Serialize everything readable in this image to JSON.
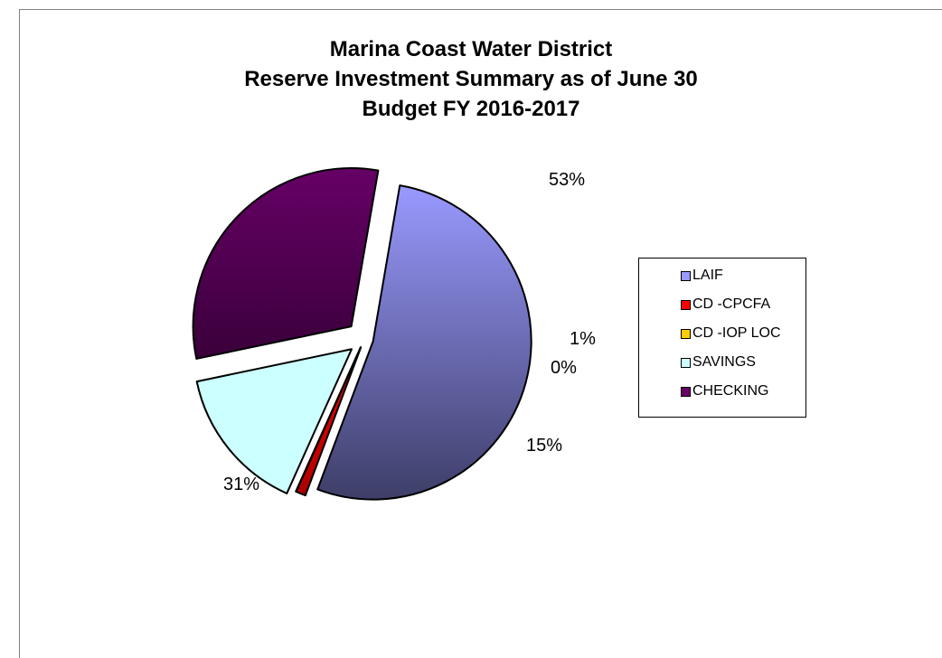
{
  "chart_data": {
    "type": "pie",
    "title_lines": [
      "Marina Coast Water District",
      "Reserve Investment Summary as of June 30",
      "Budget FY 2016-2017"
    ],
    "categories": [
      "LAIF",
      "CD -CPCFA",
      "CD -IOP LOC",
      "SAVINGS",
      "CHECKING"
    ],
    "values": [
      53,
      1,
      0,
      15,
      31
    ],
    "labels": [
      "53%",
      "1%",
      "0%",
      "15%",
      "31%"
    ],
    "colors": [
      "#9999ff",
      "#ff0000",
      "#ffcc00",
      "#ccffff",
      "#660066"
    ],
    "exploded": true,
    "legend_position": "right"
  }
}
